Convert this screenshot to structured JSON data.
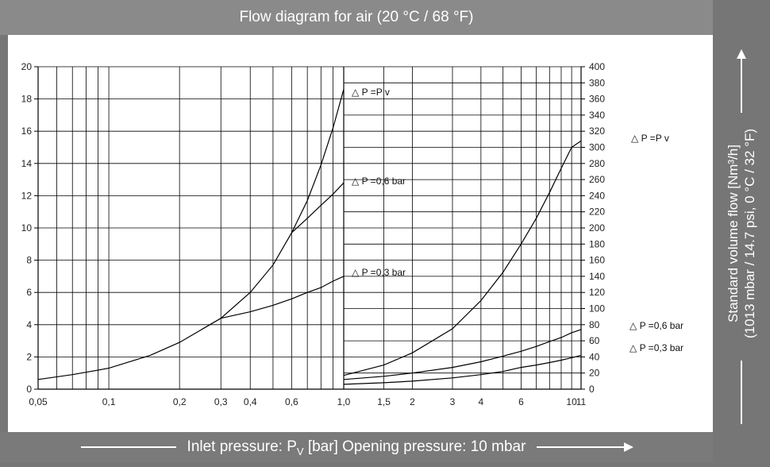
{
  "header": {
    "title": "Flow diagram for air (20 °C / 68 °F)"
  },
  "footer": {
    "xlabel_prefix": "Inlet pressure: P",
    "xlabel_sub": "V",
    "xlabel_suffix": " [bar] Opening pressure: 10 mbar"
  },
  "side": {
    "ylabel_line1": "Standard volume flow [Nm³/h]",
    "ylabel_line2": "(1013 mbar / 14.7 psi, 0 °C / 32 °F)"
  },
  "colors": {
    "background": "#767676",
    "plot": "#ffffff",
    "line": "#000000"
  },
  "chart_data": [
    {
      "type": "line",
      "panel": "left",
      "x_scale": "log",
      "xlim": [
        0.05,
        1.0
      ],
      "ylim": [
        0,
        20
      ],
      "x_ticks": [
        "0,05",
        "0,1",
        "0,2",
        "0,3",
        "0,4",
        "0,6",
        "1,0"
      ],
      "x_tick_values": [
        0.05,
        0.1,
        0.2,
        0.3,
        0.4,
        0.6,
        1.0
      ],
      "y_ticks": [
        "0",
        "2",
        "4",
        "6",
        "8",
        "10",
        "12",
        "14",
        "16",
        "18",
        "20"
      ],
      "grid": true,
      "series": [
        {
          "name": "△ P =P v",
          "x": [
            0.05,
            0.07,
            0.1,
            0.15,
            0.2,
            0.3,
            0.4,
            0.5,
            0.6,
            0.7,
            0.8,
            0.9,
            1.0
          ],
          "y": [
            0.6,
            0.9,
            1.3,
            2.1,
            2.9,
            4.4,
            6.0,
            7.7,
            9.7,
            11.7,
            13.9,
            16.2,
            18.6
          ]
        },
        {
          "name": "△ P =0,6 bar",
          "x": [
            0.6,
            0.7,
            0.8,
            0.9,
            1.0
          ],
          "y": [
            9.7,
            10.6,
            11.4,
            12.1,
            12.8
          ]
        },
        {
          "name": "△ P =0,3 bar",
          "x": [
            0.3,
            0.4,
            0.5,
            0.6,
            0.7,
            0.8,
            0.9,
            1.0
          ],
          "y": [
            4.4,
            4.8,
            5.2,
            5.6,
            6.0,
            6.3,
            6.7,
            7.0
          ]
        }
      ]
    },
    {
      "type": "line",
      "panel": "right",
      "x_scale": "log",
      "xlim": [
        1.0,
        11
      ],
      "ylim": [
        0,
        400
      ],
      "x_ticks": [
        "1,0",
        "1,5",
        "2",
        "3",
        "4",
        "6",
        "10",
        "11"
      ],
      "x_tick_values": [
        1.0,
        1.5,
        2,
        3,
        4,
        6,
        10,
        11
      ],
      "y_ticks": [
        "0",
        "20",
        "40",
        "60",
        "80",
        "100",
        "120",
        "140",
        "160",
        "180",
        "200",
        "220",
        "240",
        "260",
        "280",
        "300",
        "320",
        "340",
        "360",
        "380",
        "400"
      ],
      "grid": true,
      "series": [
        {
          "name": "△ P =P v",
          "x": [
            1.0,
            1.5,
            2,
            3,
            4,
            5,
            6,
            7,
            8,
            9,
            10,
            11
          ],
          "y": [
            17,
            30,
            45,
            75,
            110,
            145,
            180,
            212,
            244,
            274,
            300,
            308
          ]
        },
        {
          "name": "△ P =0,6 bar",
          "x": [
            1.0,
            1.5,
            2,
            3,
            4,
            5,
            6,
            7,
            8,
            9,
            10,
            11
          ],
          "y": [
            12,
            16,
            20,
            27,
            34,
            41,
            47,
            53,
            59,
            64,
            70,
            74
          ]
        },
        {
          "name": "△ P =0,3 bar",
          "x": [
            1.0,
            1.5,
            2,
            3,
            4,
            5,
            6,
            7,
            8,
            9,
            10,
            11
          ],
          "y": [
            6,
            8,
            10,
            14,
            18,
            22,
            27,
            30,
            33,
            36,
            39,
            42
          ]
        }
      ]
    }
  ]
}
